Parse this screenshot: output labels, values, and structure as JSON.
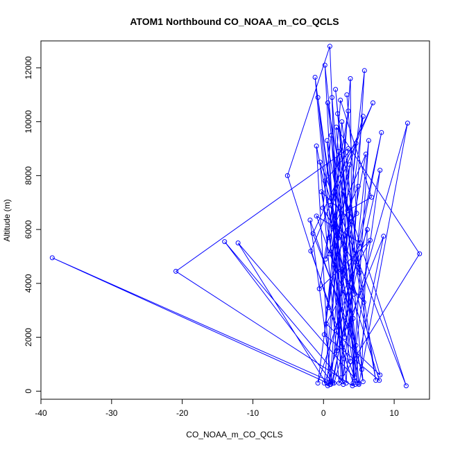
{
  "chart_data": {
    "type": "scatter",
    "title": "ATOM1 Northbound CO_NOAA_m_CO_QCLS",
    "xlabel": "CO_NOAA_m_CO_QCLS",
    "ylabel": "Altitude (m)",
    "xlim": [
      -40,
      15
    ],
    "ylim": [
      -300,
      13000
    ],
    "xticks": [
      -40,
      -30,
      -20,
      -10,
      0,
      10
    ],
    "yticks": [
      0,
      2000,
      4000,
      6000,
      8000,
      10000,
      12000
    ],
    "grid": false,
    "legend": "none",
    "marker": "open-circle",
    "connected": true,
    "series_color": "#0000ff",
    "points": [
      [
        0.5,
        300
      ],
      [
        3.8,
        11600
      ],
      [
        4.2,
        300
      ],
      [
        -5.1,
        8000
      ],
      [
        0.9,
        12800
      ],
      [
        2.8,
        250
      ],
      [
        -1.2,
        11650
      ],
      [
        4.5,
        250
      ],
      [
        1.2,
        10900
      ],
      [
        2.5,
        500
      ],
      [
        0.2,
        12100
      ],
      [
        5.0,
        250
      ],
      [
        11.9,
        9950
      ],
      [
        1.5,
        300
      ],
      [
        -38.4,
        4950
      ],
      [
        1.0,
        250
      ],
      [
        5.8,
        11900
      ],
      [
        3.2,
        300
      ],
      [
        -0.8,
        10900
      ],
      [
        4.8,
        300
      ],
      [
        0.6,
        10700
      ],
      [
        7.4,
        400
      ],
      [
        2.0,
        10300
      ],
      [
        5.6,
        350
      ],
      [
        -1.0,
        9100
      ],
      [
        0.9,
        250
      ],
      [
        3.5,
        9000
      ],
      [
        -20.9,
        4450
      ],
      [
        4.1,
        200
      ],
      [
        6.4,
        9300
      ],
      [
        2.7,
        350
      ],
      [
        -14.0,
        5550
      ],
      [
        1.3,
        300
      ],
      [
        8.2,
        9600
      ],
      [
        0.6,
        200
      ],
      [
        -12.1,
        5500
      ],
      [
        5.0,
        300
      ],
      [
        1.8,
        9800
      ],
      [
        13.6,
        5100
      ],
      [
        2.2,
        300
      ],
      [
        -0.5,
        8500
      ],
      [
        11.7,
        200
      ],
      [
        2.8,
        7400
      ],
      [
        0.1,
        300
      ],
      [
        8.5,
        5750
      ],
      [
        4.4,
        500
      ],
      [
        -1.8,
        5200
      ],
      [
        7.0,
        10700
      ],
      [
        -1.5,
        5850
      ],
      [
        4.6,
        1700
      ],
      [
        8.0,
        8200
      ],
      [
        1.2,
        350
      ],
      [
        -1.9,
        6350
      ],
      [
        5.4,
        800
      ],
      [
        6.2,
        6000
      ],
      [
        -0.8,
        300
      ],
      [
        1.8,
        5400
      ],
      [
        7.9,
        400
      ],
      [
        0.1,
        2100
      ],
      [
        3.5,
        10400
      ],
      [
        -0.6,
        3800
      ],
      [
        6.6,
        5600
      ],
      [
        0.4,
        2500
      ],
      [
        8.0,
        600
      ],
      [
        1.0,
        6900
      ],
      [
        4.2,
        2700
      ],
      [
        -1.0,
        6500
      ],
      [
        5.2,
        5500
      ],
      [
        2.5,
        4000
      ],
      [
        6.0,
        8800
      ],
      [
        0.8,
        5700
      ],
      [
        3.8,
        1100
      ],
      [
        -0.3,
        7400
      ],
      [
        4.0,
        6300
      ],
      [
        1.5,
        4700
      ],
      [
        5.7,
        3300
      ],
      [
        2.1,
        8900
      ],
      [
        0.3,
        4900
      ],
      [
        4.9,
        7600
      ],
      [
        3.0,
        2000
      ],
      [
        1.1,
        9500
      ],
      [
        -0.1,
        6800
      ],
      [
        5.1,
        4400
      ],
      [
        2.6,
        10000
      ],
      [
        0.7,
        3100
      ],
      [
        3.7,
        8400
      ],
      [
        1.9,
        1500
      ],
      [
        4.6,
        9200
      ],
      [
        0.2,
        7800
      ],
      [
        3.1,
        5200
      ],
      [
        5.6,
        10200
      ],
      [
        1.4,
        6100
      ],
      [
        2.9,
        1200
      ],
      [
        0.5,
        9300
      ],
      [
        4.3,
        3600
      ],
      [
        1.7,
        11200
      ],
      [
        3.4,
        6700
      ],
      [
        6.8,
        7200
      ],
      [
        2.4,
        10800
      ],
      [
        0.9,
        5100
      ],
      [
        4.7,
        6600
      ],
      [
        3.3,
        11000
      ]
    ]
  }
}
